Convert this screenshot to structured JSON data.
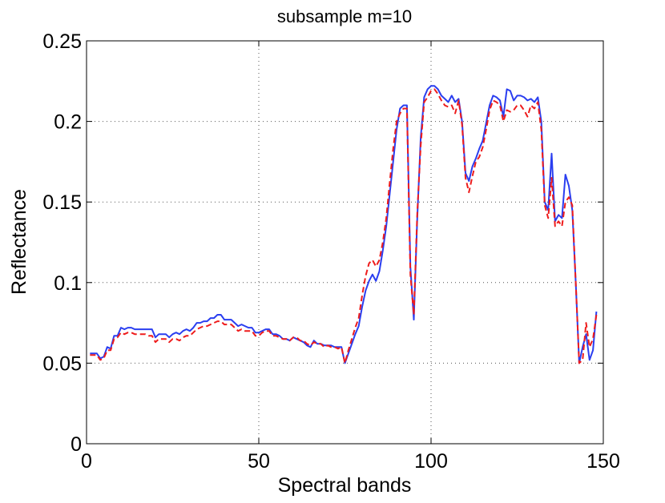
{
  "chart_data": {
    "type": "line",
    "title": "subsample m=10",
    "xlabel": "Spectral bands",
    "ylabel": "Reflectance",
    "xlim": [
      0,
      150
    ],
    "ylim": [
      0,
      0.25
    ],
    "xticks": [
      0,
      50,
      100,
      150
    ],
    "xtick_labels": [
      "0",
      "50",
      "100",
      "150"
    ],
    "yticks": [
      0,
      0.05,
      0.1,
      0.15,
      0.2,
      0.25
    ],
    "ytick_labels": [
      "0",
      "0.05",
      "0.1",
      "0.15",
      "0.2",
      "0.25"
    ],
    "grid": true,
    "legend": "none",
    "series": [
      {
        "color": "#2a3ef0",
        "style": "solid",
        "x": [
          1,
          2,
          3,
          4,
          5,
          6,
          7,
          8,
          9,
          10,
          11,
          12,
          13,
          14,
          15,
          16,
          17,
          18,
          19,
          20,
          21,
          22,
          23,
          24,
          25,
          26,
          27,
          28,
          29,
          30,
          31,
          32,
          33,
          34,
          35,
          36,
          37,
          38,
          39,
          40,
          41,
          42,
          43,
          44,
          45,
          46,
          47,
          48,
          49,
          50,
          51,
          52,
          53,
          54,
          55,
          56,
          57,
          58,
          59,
          60,
          61,
          62,
          63,
          64,
          65,
          66,
          67,
          68,
          69,
          70,
          71,
          72,
          73,
          74,
          75,
          76,
          77,
          78,
          79,
          80,
          81,
          82,
          83,
          84,
          85,
          86,
          87,
          88,
          89,
          90,
          91,
          92,
          93,
          94,
          95,
          96,
          97,
          98,
          99,
          100,
          101,
          102,
          103,
          104,
          105,
          106,
          107,
          108,
          109,
          110,
          111,
          112,
          113,
          114,
          115,
          116,
          117,
          118,
          119,
          120,
          121,
          122,
          123,
          124,
          125,
          126,
          127,
          128,
          129,
          130,
          131,
          132,
          133,
          134,
          135,
          136,
          137,
          138,
          139,
          140,
          141,
          142,
          143,
          144,
          145,
          146,
          147,
          148
        ],
        "y": [
          0.056,
          0.056,
          0.056,
          0.053,
          0.054,
          0.06,
          0.059,
          0.067,
          0.067,
          0.072,
          0.071,
          0.072,
          0.072,
          0.071,
          0.071,
          0.071,
          0.071,
          0.071,
          0.071,
          0.066,
          0.068,
          0.068,
          0.068,
          0.066,
          0.068,
          0.069,
          0.068,
          0.07,
          0.071,
          0.07,
          0.072,
          0.075,
          0.075,
          0.076,
          0.076,
          0.078,
          0.078,
          0.08,
          0.08,
          0.077,
          0.077,
          0.077,
          0.075,
          0.073,
          0.074,
          0.073,
          0.072,
          0.072,
          0.069,
          0.069,
          0.07,
          0.071,
          0.071,
          0.068,
          0.068,
          0.067,
          0.065,
          0.065,
          0.064,
          0.066,
          0.065,
          0.064,
          0.063,
          0.061,
          0.06,
          0.064,
          0.062,
          0.062,
          0.061,
          0.061,
          0.061,
          0.06,
          0.06,
          0.06,
          0.05,
          0.056,
          0.062,
          0.068,
          0.073,
          0.085,
          0.095,
          0.101,
          0.105,
          0.101,
          0.107,
          0.12,
          0.135,
          0.155,
          0.175,
          0.195,
          0.208,
          0.21,
          0.21,
          0.11,
          0.077,
          0.14,
          0.19,
          0.215,
          0.22,
          0.222,
          0.222,
          0.22,
          0.216,
          0.214,
          0.212,
          0.216,
          0.212,
          0.214,
          0.2,
          0.168,
          0.163,
          0.172,
          0.177,
          0.183,
          0.188,
          0.199,
          0.21,
          0.216,
          0.215,
          0.213,
          0.203,
          0.22,
          0.219,
          0.213,
          0.216,
          0.216,
          0.215,
          0.213,
          0.214,
          0.212,
          0.215,
          0.2,
          0.15,
          0.145,
          0.18,
          0.138,
          0.142,
          0.14,
          0.167,
          0.16,
          0.145,
          0.1,
          0.05,
          0.06,
          0.068,
          0.052,
          0.058,
          0.082
        ]
      },
      {
        "color": "#ee1c1c",
        "style": "dashed",
        "x": [
          1,
          2,
          3,
          4,
          5,
          6,
          7,
          8,
          9,
          10,
          11,
          12,
          13,
          14,
          15,
          16,
          17,
          18,
          19,
          20,
          21,
          22,
          23,
          24,
          25,
          26,
          27,
          28,
          29,
          30,
          31,
          32,
          33,
          34,
          35,
          36,
          37,
          38,
          39,
          40,
          41,
          42,
          43,
          44,
          45,
          46,
          47,
          48,
          49,
          50,
          51,
          52,
          53,
          54,
          55,
          56,
          57,
          58,
          59,
          60,
          61,
          62,
          63,
          64,
          65,
          66,
          67,
          68,
          69,
          70,
          71,
          72,
          73,
          74,
          75,
          76,
          77,
          78,
          79,
          80,
          81,
          82,
          83,
          84,
          85,
          86,
          87,
          88,
          89,
          90,
          91,
          92,
          93,
          94,
          95,
          96,
          97,
          98,
          99,
          100,
          101,
          102,
          103,
          104,
          105,
          106,
          107,
          108,
          109,
          110,
          111,
          112,
          113,
          114,
          115,
          116,
          117,
          118,
          119,
          120,
          121,
          122,
          123,
          124,
          125,
          126,
          127,
          128,
          129,
          130,
          131,
          132,
          133,
          134,
          135,
          136,
          137,
          138,
          139,
          140,
          141,
          142,
          143,
          144,
          145,
          146,
          147,
          148
        ],
        "y": [
          0.055,
          0.055,
          0.055,
          0.052,
          0.053,
          0.058,
          0.058,
          0.065,
          0.066,
          0.069,
          0.068,
          0.069,
          0.069,
          0.068,
          0.068,
          0.068,
          0.068,
          0.067,
          0.067,
          0.063,
          0.065,
          0.065,
          0.065,
          0.063,
          0.065,
          0.065,
          0.064,
          0.066,
          0.067,
          0.067,
          0.069,
          0.071,
          0.072,
          0.073,
          0.073,
          0.074,
          0.075,
          0.076,
          0.076,
          0.074,
          0.074,
          0.074,
          0.072,
          0.07,
          0.071,
          0.07,
          0.07,
          0.07,
          0.067,
          0.067,
          0.069,
          0.07,
          0.07,
          0.067,
          0.067,
          0.066,
          0.065,
          0.065,
          0.064,
          0.066,
          0.066,
          0.064,
          0.064,
          0.062,
          0.061,
          0.063,
          0.062,
          0.062,
          0.06,
          0.061,
          0.06,
          0.06,
          0.059,
          0.06,
          0.05,
          0.058,
          0.065,
          0.072,
          0.078,
          0.092,
          0.104,
          0.112,
          0.114,
          0.11,
          0.114,
          0.125,
          0.14,
          0.162,
          0.183,
          0.2,
          0.205,
          0.208,
          0.208,
          0.105,
          0.08,
          0.143,
          0.185,
          0.212,
          0.215,
          0.219,
          0.22,
          0.217,
          0.213,
          0.21,
          0.209,
          0.21,
          0.205,
          0.213,
          0.198,
          0.165,
          0.156,
          0.166,
          0.175,
          0.178,
          0.184,
          0.195,
          0.207,
          0.213,
          0.212,
          0.21,
          0.2,
          0.207,
          0.206,
          0.207,
          0.21,
          0.21,
          0.207,
          0.203,
          0.21,
          0.208,
          0.212,
          0.195,
          0.148,
          0.14,
          0.165,
          0.135,
          0.138,
          0.135,
          0.15,
          0.153,
          0.148,
          0.1,
          0.05,
          0.052,
          0.075,
          0.06,
          0.065,
          0.08
        ]
      }
    ]
  }
}
